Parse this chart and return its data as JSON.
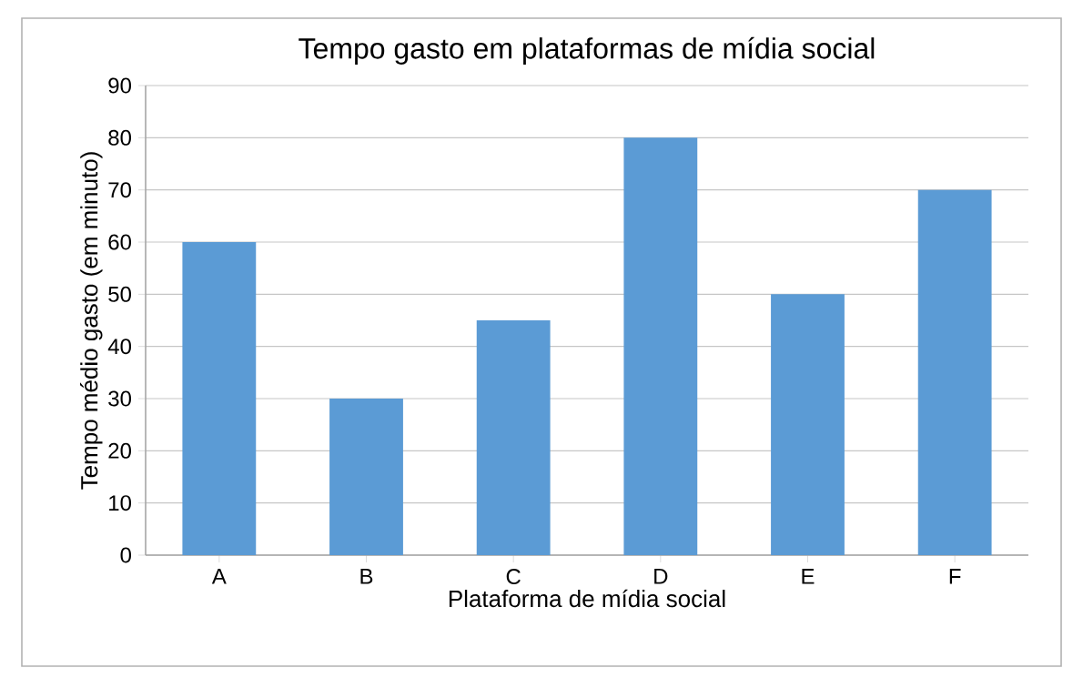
{
  "chart_data": {
    "type": "bar",
    "title": "Tempo gasto em plataformas de mídia social",
    "xlabel": "Plataforma de mídia social",
    "ylabel": "Tempo médio gasto (em minuto)",
    "categories": [
      "A",
      "B",
      "C",
      "D",
      "E",
      "F"
    ],
    "values": [
      60,
      30,
      45,
      80,
      50,
      70
    ],
    "color": "#5b9bd5",
    "ylim": [
      0,
      90
    ],
    "yticks": [
      0,
      10,
      20,
      30,
      40,
      50,
      60,
      70,
      80,
      90
    ],
    "grid": "y"
  }
}
